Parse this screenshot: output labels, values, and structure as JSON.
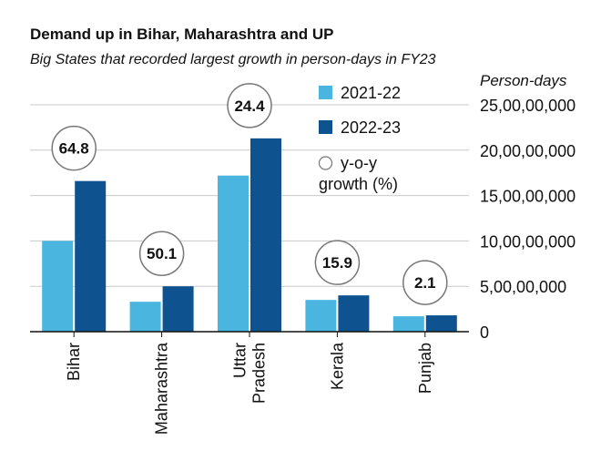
{
  "chart_data": {
    "type": "bar",
    "title": "Demand up in Bihar, Maharashtra and UP",
    "subtitle": "Big States that recorded largest growth in person-days in FY23",
    "ylabel": "Person-days",
    "ylim": [
      0,
      250000000
    ],
    "y_ticks": [
      0,
      50000000,
      100000000,
      150000000,
      200000000,
      250000000
    ],
    "y_tick_labels": [
      "0",
      "5,00,00,000",
      "10,00,00,000",
      "15,00,00,000",
      "20,00,00,000",
      "25,00,00,000"
    ],
    "grid": true,
    "legend_position": "top-right",
    "categories": [
      "Bihar",
      "Maharashtra",
      "Uttar Pradesh",
      "Kerala",
      "Punjab"
    ],
    "category_labels": [
      [
        "Bihar"
      ],
      [
        "Maharashtra"
      ],
      [
        "Uttar",
        "Pradesh"
      ],
      [
        "Kerala"
      ],
      [
        "Punjab"
      ]
    ],
    "series": [
      {
        "name": "2021-22",
        "color": "#4ab6e0",
        "values": [
          100000000,
          33000000,
          172000000,
          35000000,
          17000000
        ]
      },
      {
        "name": "2022-23",
        "color": "#0e5390",
        "values": [
          166000000,
          50000000,
          213000000,
          40000000,
          18000000
        ]
      }
    ],
    "growth_legend_label": [
      "y-o-y",
      "growth (%)"
    ],
    "growth_labels": [
      "64.8",
      "50.1",
      "24.4",
      "15.9",
      "2.1"
    ]
  }
}
